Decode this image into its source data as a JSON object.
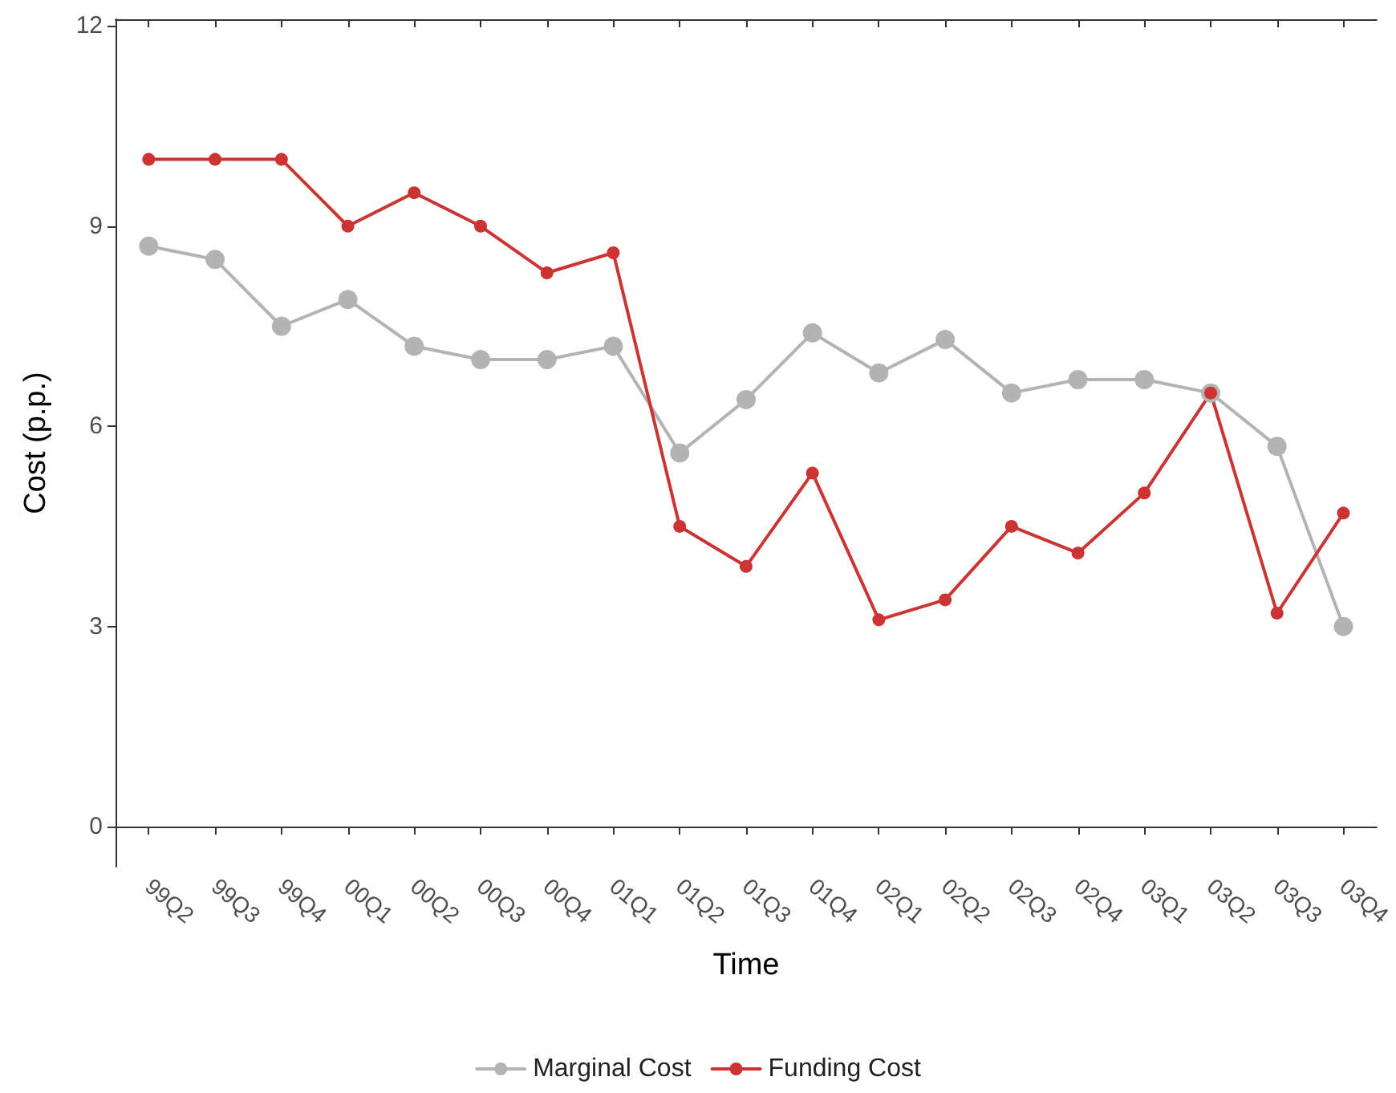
{
  "chart_data": {
    "type": "line",
    "xlabel": "Time",
    "ylabel": "Cost (p.p.)",
    "categories": [
      "99Q2",
      "99Q3",
      "99Q4",
      "00Q1",
      "00Q2",
      "00Q3",
      "00Q4",
      "01Q1",
      "01Q2",
      "01Q3",
      "01Q4",
      "02Q1",
      "02Q2",
      "02Q3",
      "02Q4",
      "03Q1",
      "03Q2",
      "03Q3",
      "03Q4"
    ],
    "series": [
      {
        "name": "Marginal Cost",
        "color": "#b3b3b3",
        "values": [
          8.7,
          8.5,
          7.5,
          7.9,
          7.2,
          7.0,
          7.0,
          7.2,
          5.6,
          6.4,
          7.4,
          6.8,
          7.3,
          6.5,
          6.7,
          6.7,
          6.5,
          5.7,
          3.0
        ]
      },
      {
        "name": "Funding Cost",
        "color": "#cc3333",
        "values": [
          10.0,
          10.0,
          10.0,
          9.0,
          9.5,
          9.0,
          8.3,
          8.6,
          4.5,
          3.9,
          5.3,
          3.1,
          3.4,
          4.5,
          4.1,
          5.0,
          6.5,
          3.2,
          4.7
        ]
      }
    ],
    "ylim": [
      -0.6,
      12.1
    ],
    "yticks": [
      0,
      3,
      6,
      9,
      12
    ],
    "grid": false,
    "legend": "bottom",
    "marker": "circle",
    "line_style": "solid"
  }
}
